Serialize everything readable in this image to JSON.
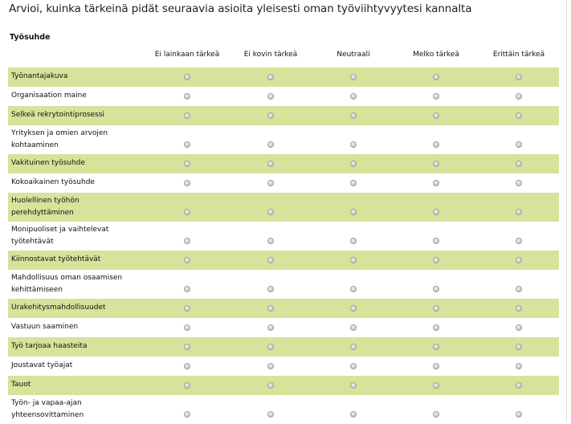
{
  "title": "Arvioi, kuinka tärkeinä pidät seuraavia asioita yleisesti oman työviihtyvyytesi kannalta",
  "section": "Työsuhde",
  "columns": [
    "Ei lainkaan tärkeä",
    "Ei kovin tärkeä",
    "Neutraali",
    "Melko tärkeä",
    "Erittäin tärkeä"
  ],
  "rows": [
    {
      "line1": "Työnantajakuva",
      "line2": ""
    },
    {
      "line1": "Organisaation maine",
      "line2": ""
    },
    {
      "line1": "Selkeä rekrytointiprosessi",
      "line2": ""
    },
    {
      "line1": "Yrityksen ja omien arvojen",
      "line2": "kohtaaminen"
    },
    {
      "line1": "Vakituinen työsuhde",
      "line2": ""
    },
    {
      "line1": "Kokoaikainen työsuhde",
      "line2": ""
    },
    {
      "line1": "Huolellinen työhön",
      "line2": "perehdyttäminen"
    },
    {
      "line1": "Monipuoliset ja vaihtelevat",
      "line2": "työtehtävät"
    },
    {
      "line1": "Kiinnostavat työtehtävät",
      "line2": ""
    },
    {
      "line1": "Mahdollisuus oman osaamisen",
      "line2": "kehittämiseen"
    },
    {
      "line1": "Urakehitysmahdollisuudet",
      "line2": ""
    },
    {
      "line1": "Vastuun saaminen",
      "line2": ""
    },
    {
      "line1": "Työ tarjoaa haasteita",
      "line2": ""
    },
    {
      "line1": "Joustavat työajat",
      "line2": ""
    },
    {
      "line1": "Tauot",
      "line2": ""
    },
    {
      "line1": "Työn- ja vapaa-ajan",
      "line2": "yhteensovittaminen"
    }
  ],
  "colors": {
    "shaded_row": "#d6e39a"
  }
}
